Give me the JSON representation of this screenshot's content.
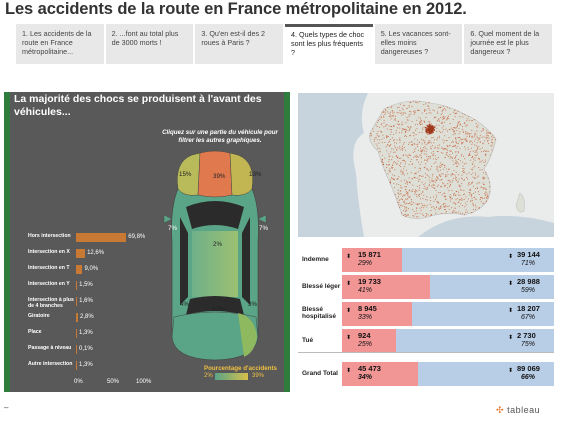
{
  "title": "Les accidents de la route en France métropolitaine en 2012.",
  "story_points": [
    "1. Les accidents de la route en France métropolitaine...",
    "2. ...font au total plus de 3000 morts !",
    "3. Qu'en est-il des 2 roues à Paris ?",
    "4. Quels types de choc sont les plus fréquents ?",
    "5. Les vacances sont-elles moins dangereuses ?",
    "6. Quel moment de la journée est le plus dangereux ?"
  ],
  "active_story_point": 3,
  "left_panel": {
    "title": "La majorité des chocs se produisent à l'avant des véhicules...",
    "instruction": "Cliquez sur une partie du véhicule pour filtrer les autres graphiques."
  },
  "chart_data": {
    "type": "bar",
    "orientation": "horizontal",
    "categories": [
      "Hors intersection",
      "Intersection en X",
      "Intersection en T",
      "Intersection en Y",
      "Intersection à plus de 4 branches",
      "Giratoire",
      "Place",
      "Passage à niveau",
      "Autre intersection"
    ],
    "values": [
      69.8,
      12.6,
      9.0,
      1.5,
      1.6,
      2.8,
      1.3,
      0.1,
      1.3
    ],
    "value_labels": [
      "69,8%",
      "12,6%",
      "9,0%",
      "1,5%",
      "1,6%",
      "2,8%",
      "1,3%",
      "0,1%",
      "1,3%"
    ],
    "xlim": [
      0,
      100
    ],
    "x_ticks": [
      "0%",
      "50%",
      "100%"
    ],
    "bar_color": "#c87a35"
  },
  "car_zones": {
    "front_center": "39%",
    "front_left": "15%",
    "front_right": "13%",
    "side_left": "7%",
    "side_right": "7%",
    "middle": "2%",
    "rear_center": "10%",
    "rear_left": "4%",
    "rear_right": "3%"
  },
  "legend": {
    "title": "Pourcentage d'accidents",
    "min": "2%",
    "max": "39%",
    "min_color": "#5aa487",
    "max_color": "#d8c04a"
  },
  "table": {
    "rows": [
      {
        "label": "Indemne",
        "a_value": "15 871",
        "a_pct": "29%",
        "b_value": "39 144",
        "b_pct": "71%",
        "a_share": 0.29
      },
      {
        "label": "Blessé léger",
        "a_value": "19 733",
        "a_pct": "41%",
        "b_value": "28 988",
        "b_pct": "59%",
        "a_share": 0.41
      },
      {
        "label": "Blessé hospitalisé",
        "a_value": "8 945",
        "a_pct": "33%",
        "b_value": "18 207",
        "b_pct": "67%",
        "a_share": 0.33
      },
      {
        "label": "Tué",
        "a_value": "924",
        "a_pct": "25%",
        "b_value": "2 730",
        "b_pct": "75%",
        "a_share": 0.25
      },
      {
        "label": "Grand Total",
        "a_value": "45 473",
        "a_pct": "34%",
        "b_value": "89 069",
        "b_pct": "66%",
        "a_share": 0.34
      }
    ],
    "color_a": "#f19595",
    "color_b": "#b8cde6"
  },
  "footer": {
    "logo": "tableau",
    "dash": "–"
  },
  "colors": {
    "panel_border": "#2e7d3c",
    "panel_bg": "#595959",
    "map_bg": "#e9eceb",
    "dot": "#c1542c"
  }
}
